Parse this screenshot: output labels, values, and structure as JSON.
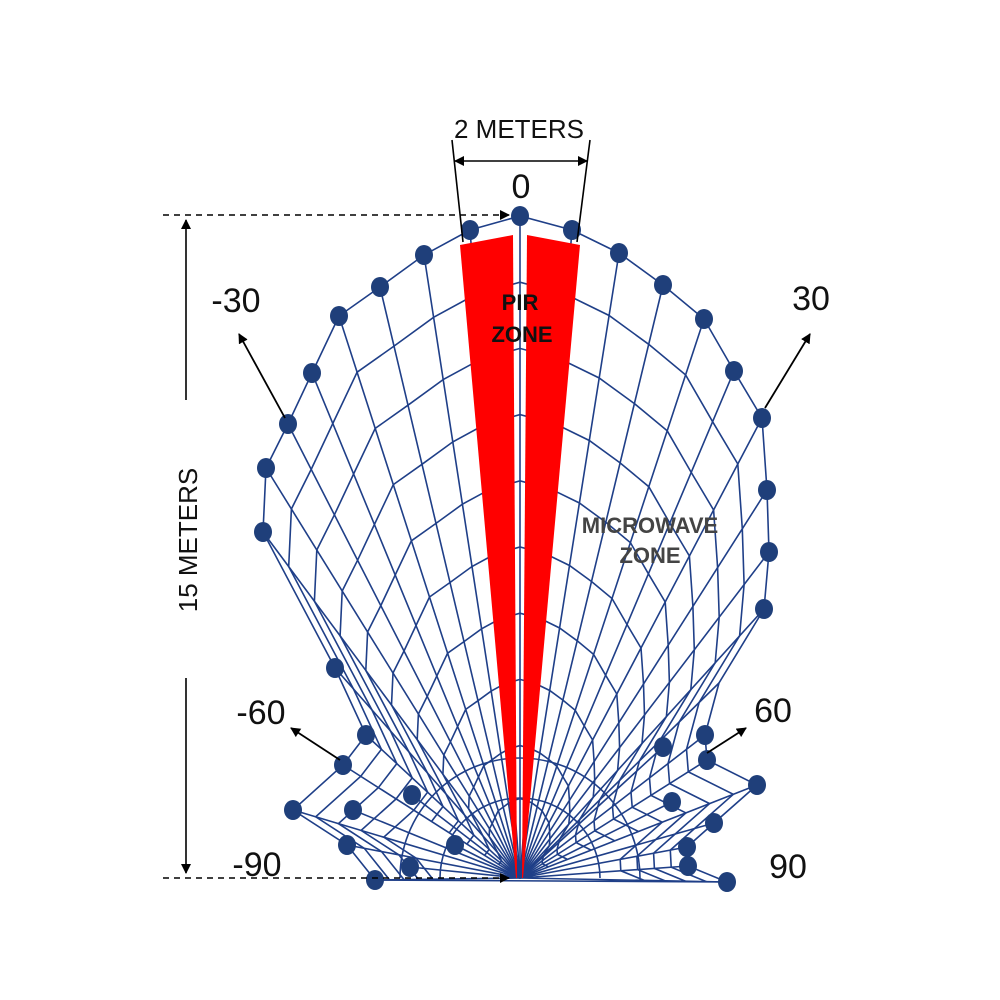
{
  "colors": {
    "grid": "#1f3f88",
    "node": "#1f3f7a",
    "pir": "#ff0000",
    "arrow": "#000000",
    "background": "#ffffff"
  },
  "labels": {
    "width_dimension": "2 METERS",
    "height_dimension": "15 METERS",
    "pir_zone_line1": "PIR",
    "pir_zone_line2": "ZONE",
    "microwave_zone_line1": "MICROWAVE",
    "microwave_zone_line2": "ZONE"
  },
  "angle_labels": {
    "a0": "0",
    "a_neg30": "-30",
    "a_pos30": "30",
    "a_neg60": "-60",
    "a_pos60": "60",
    "a_neg90": "-90",
    "a_pos90": "90"
  }
}
